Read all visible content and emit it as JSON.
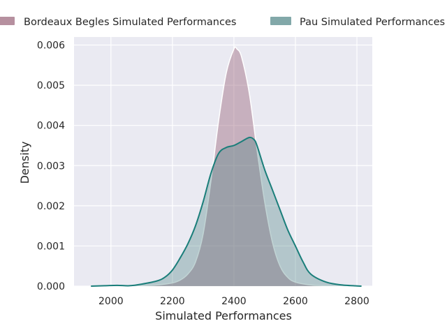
{
  "chart_data": {
    "type": "area",
    "xlabel": "Simulated Performances",
    "ylabel": "Density",
    "xlim": [
      1880,
      2850
    ],
    "ylim": [
      0,
      0.0062
    ],
    "x_ticks": [
      2000,
      2200,
      2400,
      2600,
      2800
    ],
    "x_tick_labels": [
      "2000",
      "2200",
      "2400",
      "2600",
      "2800"
    ],
    "y_ticks": [
      0,
      0.001,
      0.002,
      0.003,
      0.004,
      0.005,
      0.006
    ],
    "y_tick_labels": [
      "0.000",
      "0.001",
      "0.002",
      "0.003",
      "0.004",
      "0.005",
      "0.006"
    ],
    "grid": true,
    "legend_position": "top",
    "series": [
      {
        "name": "Bordeaux Begles Simulated Performances",
        "fill_color": "#9e6b7f",
        "line_color": "#ffffff",
        "x": [
          1995,
          2050,
          2100,
          2150,
          2200,
          2225,
          2250,
          2275,
          2300,
          2325,
          2350,
          2375,
          2400,
          2410,
          2425,
          2450,
          2475,
          2500,
          2525,
          2550,
          2575,
          2600,
          2650,
          2700,
          2760
        ],
        "y": [
          0,
          5e-06,
          1e-05,
          3e-05,
          8e-05,
          0.00015,
          0.0003,
          0.0006,
          0.0013,
          0.0026,
          0.0041,
          0.0053,
          0.0059,
          0.0059,
          0.0057,
          0.0048,
          0.0034,
          0.0021,
          0.0011,
          0.0005,
          0.00022,
          0.0001,
          3e-05,
          1e-05,
          0
        ]
      },
      {
        "name": "Pau Simulated Performances",
        "fill_color": "#4d8384",
        "line_color": "#1a7e7a",
        "x": [
          1935,
          1980,
          2020,
          2060,
          2100,
          2150,
          2175,
          2200,
          2225,
          2250,
          2275,
          2300,
          2325,
          2350,
          2375,
          2400,
          2425,
          2450,
          2465,
          2475,
          2500,
          2525,
          2550,
          2575,
          2600,
          2625,
          2650,
          2700,
          2750,
          2815
        ],
        "y": [
          0,
          1e-05,
          2e-05,
          1e-05,
          5e-05,
          0.00013,
          0.00022,
          0.0004,
          0.0007,
          0.00105,
          0.0015,
          0.0021,
          0.0028,
          0.0033,
          0.00345,
          0.0035,
          0.0036,
          0.0037,
          0.00365,
          0.0035,
          0.0029,
          0.0024,
          0.0019,
          0.0014,
          0.001,
          0.0006,
          0.0003,
          0.0001,
          3e-05,
          0
        ]
      }
    ]
  }
}
